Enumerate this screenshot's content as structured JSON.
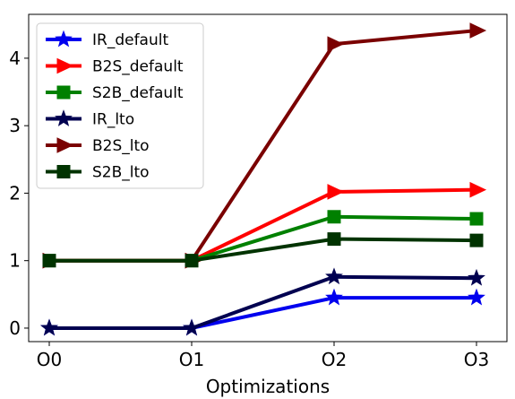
{
  "chart_data": {
    "type": "line",
    "title": "",
    "xlabel": "Optimizations",
    "ylabel": "",
    "categories": [
      "O0",
      "O1",
      "O2",
      "O3"
    ],
    "ylim": [
      -0.2,
      4.65
    ],
    "yticks": [
      0,
      1,
      2,
      3,
      4
    ],
    "grid": false,
    "legend_position": "top-left",
    "series": [
      {
        "name": "IR_default",
        "color": "#0000ee",
        "marker": "star",
        "values": [
          0,
          0,
          0.45,
          0.45
        ]
      },
      {
        "name": "B2S_default",
        "color": "#ff0000",
        "marker": "triangle",
        "values": [
          1,
          1,
          2.02,
          2.05
        ]
      },
      {
        "name": "S2B_default",
        "color": "#008000",
        "marker": "square",
        "values": [
          1,
          1,
          1.65,
          1.62
        ]
      },
      {
        "name": "IR_lto",
        "color": "#000050",
        "marker": "star",
        "values": [
          0,
          0,
          0.76,
          0.74
        ]
      },
      {
        "name": "B2S_lto",
        "color": "#7a0000",
        "marker": "triangle",
        "values": [
          1,
          1,
          4.21,
          4.41
        ]
      },
      {
        "name": "S2B_lto",
        "color": "#003300",
        "marker": "square",
        "values": [
          1,
          1,
          1.32,
          1.3
        ]
      }
    ]
  }
}
